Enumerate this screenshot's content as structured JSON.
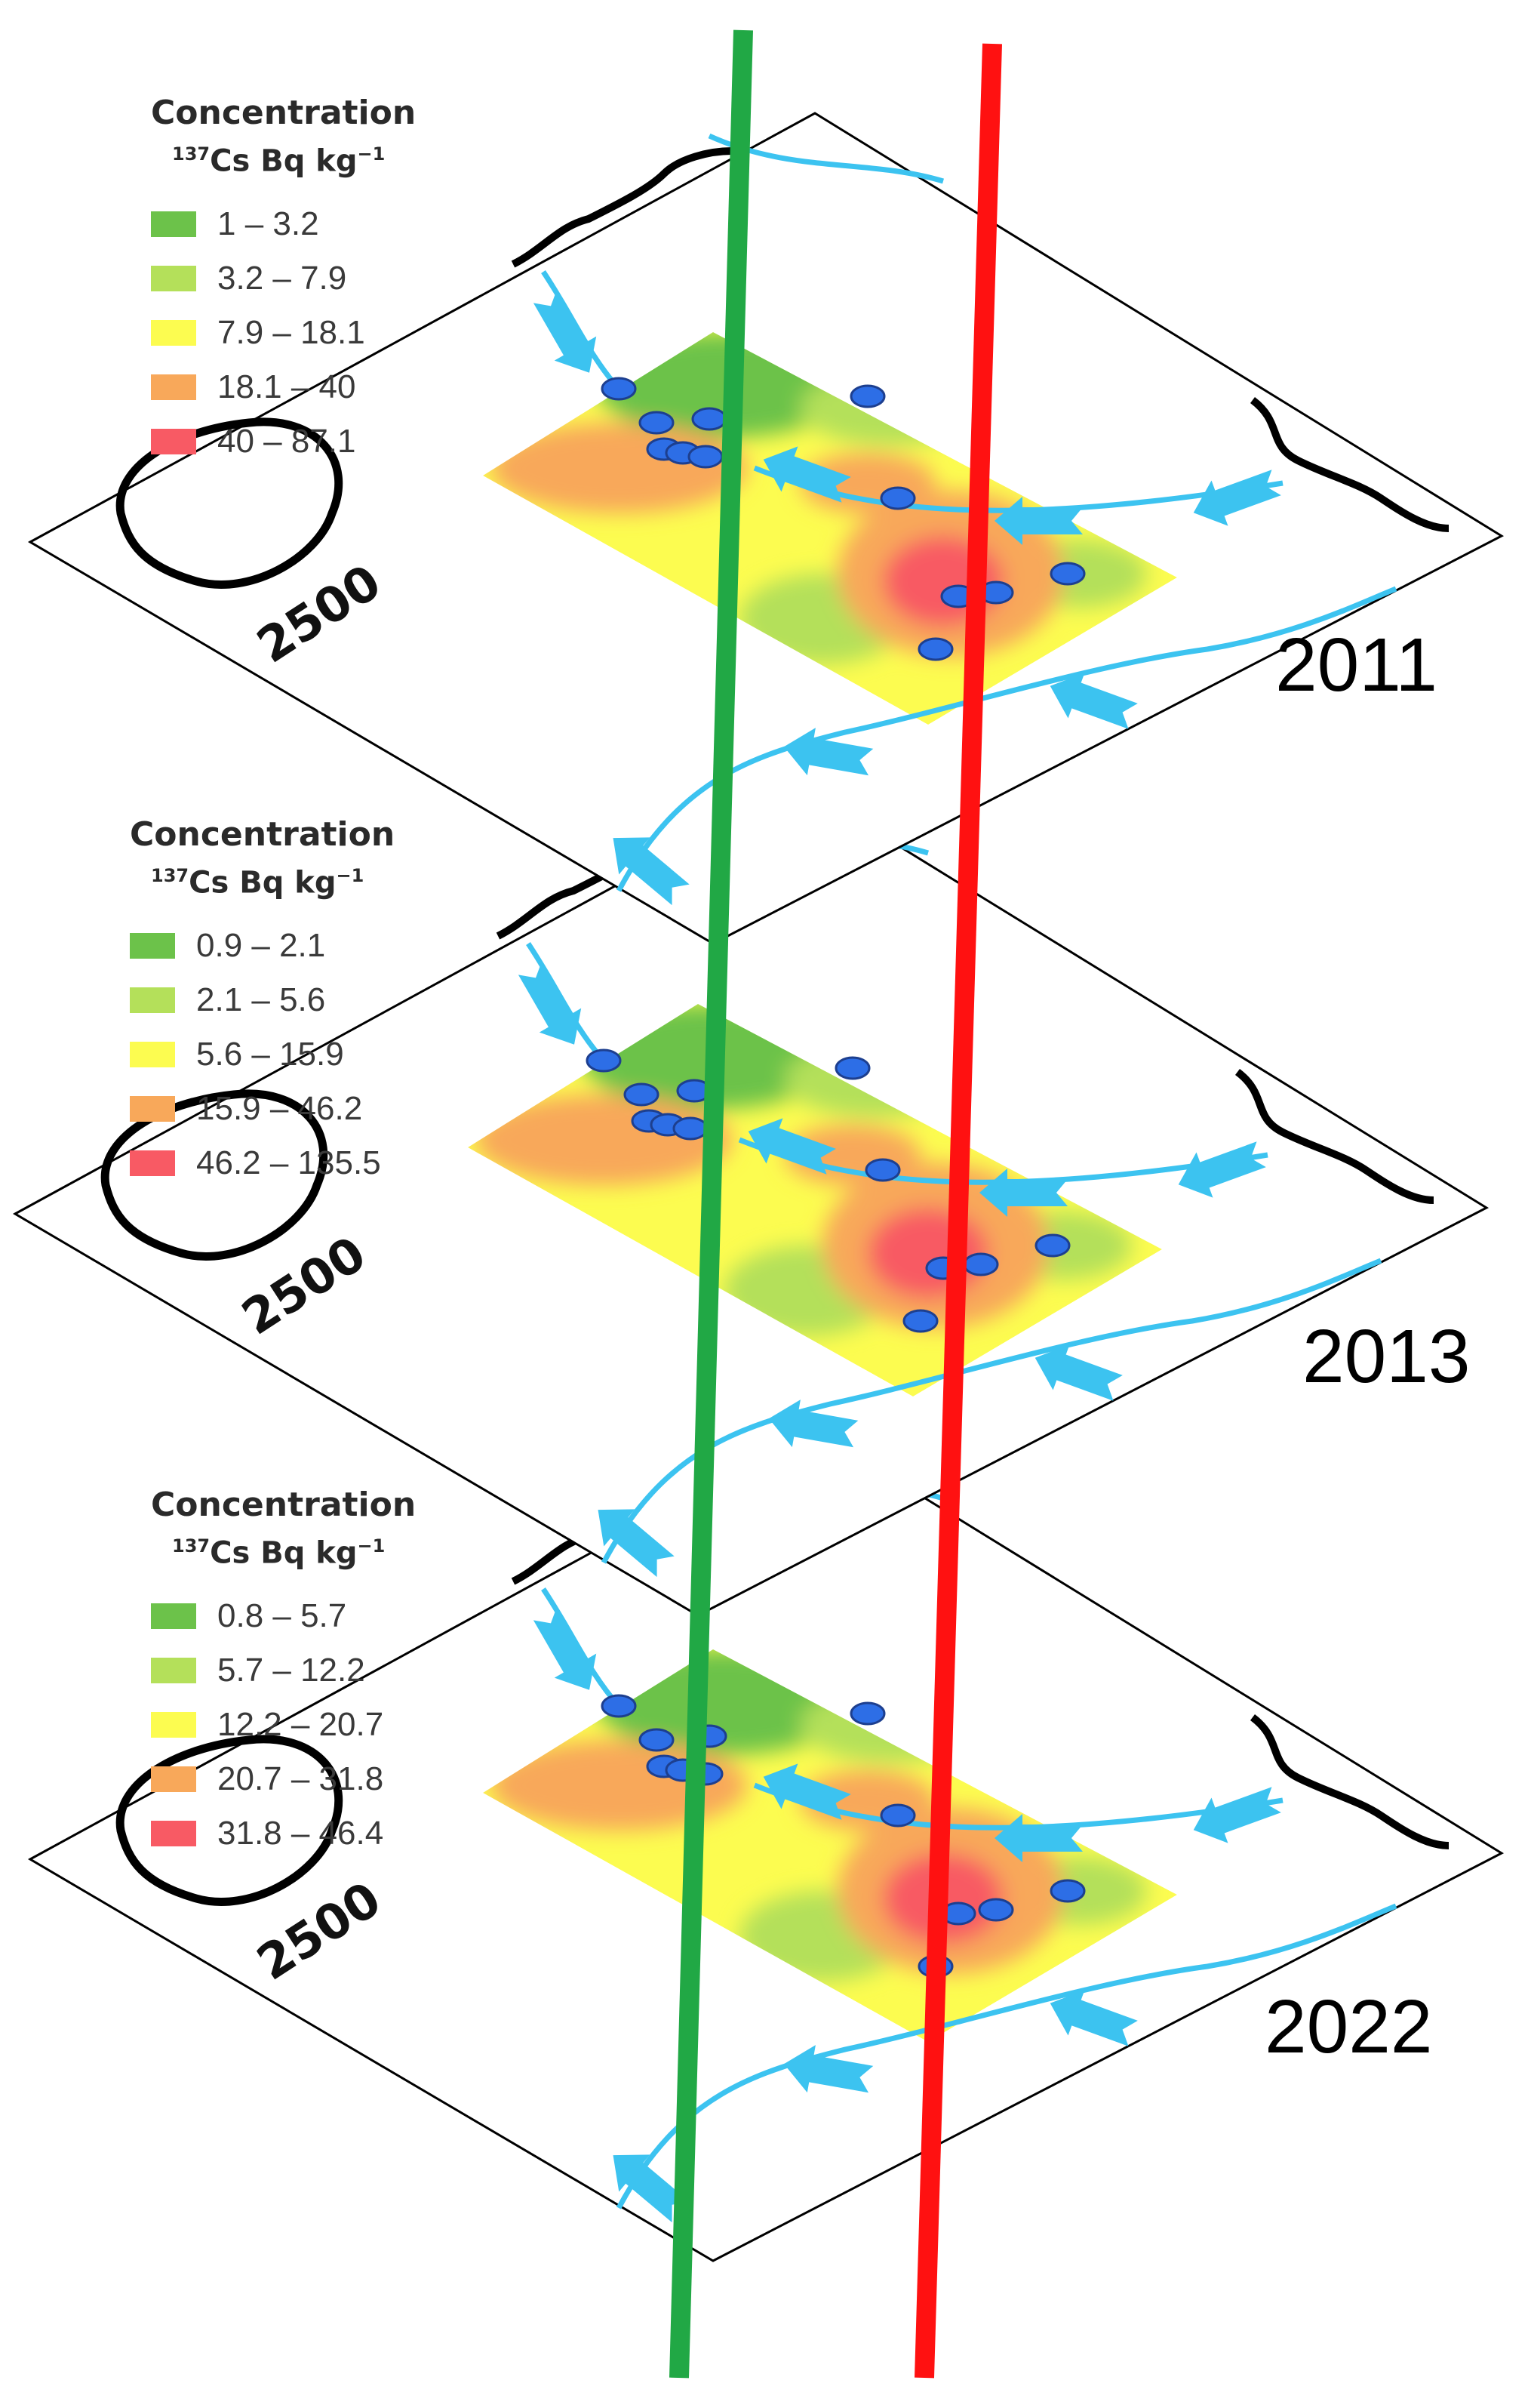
{
  "legend_title": "Concentration",
  "legend_unit": {
    "iso": "137",
    "text": "Cs  Bq kg",
    "exp": "−1"
  },
  "contour_label": "2500",
  "colors": {
    "class1": "#6cc24a",
    "class2": "#b4e05a",
    "class3": "#fcfc50",
    "class4": "#f8a85a",
    "class5": "#f85a64",
    "river": "#3cc3f0",
    "sample_point": "#2d6ee6",
    "green_line": "#21a845",
    "red_line": "#ff1111"
  },
  "panels": [
    {
      "year": "2011",
      "classes": [
        "1 – 3.2",
        "3.2 – 7.9",
        "7.9 – 18.1",
        "18.1 – 40",
        "40 – 87.1"
      ]
    },
    {
      "year": "2013",
      "classes": [
        "0.9 – 2.1",
        "2.1 – 5.6",
        "5.6 – 15.9",
        "15.9 – 46.2",
        "46.2 – 135.5"
      ]
    },
    {
      "year": "2022",
      "classes": [
        "0.8 – 5.7",
        "5.7 – 12.2",
        "12.2 – 20.7",
        "20.7 – 31.8",
        "31.8 – 46.4"
      ]
    }
  ]
}
